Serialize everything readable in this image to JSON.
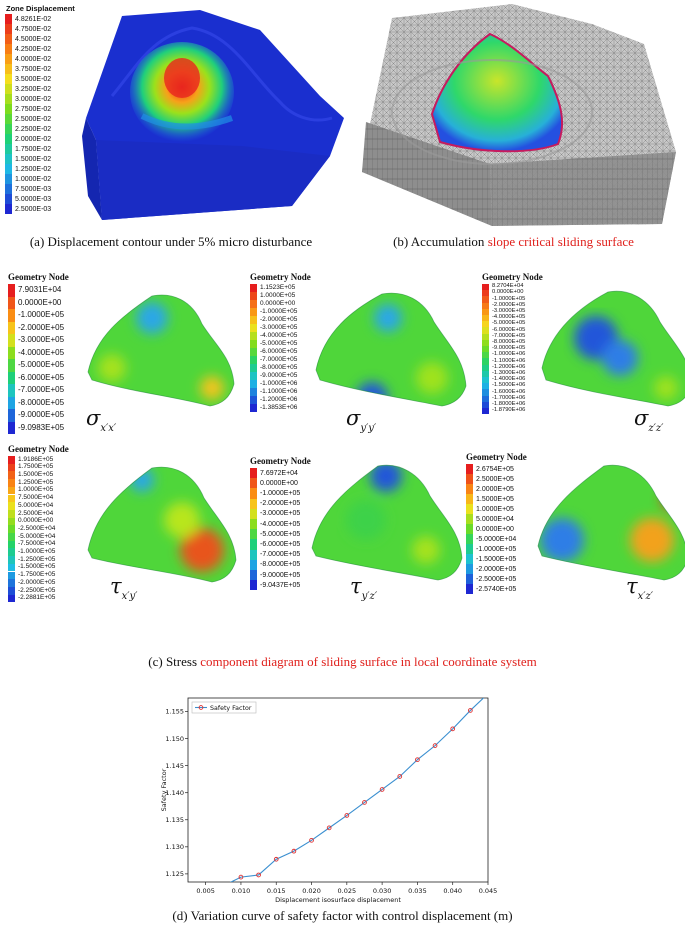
{
  "panel_a": {
    "legend_title": "Zone Displacement",
    "legend_values": [
      "4.8261E-02",
      "4.7500E-02",
      "4.5000E-02",
      "4.2500E-02",
      "4.0000E-02",
      "3.7500E-02",
      "3.5000E-02",
      "3.2500E-02",
      "3.0000E-02",
      "2.7500E-02",
      "2.5000E-02",
      "2.2500E-02",
      "2.0000E-02",
      "1.7500E-02",
      "1.5000E-02",
      "1.2500E-02",
      "1.0000E-02",
      "7.5000E-03",
      "5.0000E-03",
      "2.5000E-03"
    ],
    "caption": "(a) Displacement contour under 5% micro disturbance"
  },
  "panel_b": {
    "caption_prefix": "(b) Accumulation ",
    "caption_highlight": "slope critical sliding surface"
  },
  "panel_c": {
    "legend_title": "Geometry Node",
    "plots": [
      {
        "values": [
          "7.9031E+04",
          "0.0000E+00",
          "-1.0000E+05",
          "-2.0000E+05",
          "-3.0000E+05",
          "-4.0000E+05",
          "-5.0000E+05",
          "-6.0000E+05",
          "-7.0000E+05",
          "-8.0000E+05",
          "-9.0000E+05",
          "-9.0983E+05"
        ],
        "symbol": "σ",
        "sub": "x′x′"
      },
      {
        "values": [
          "1.1523E+05",
          "1.0000E+05",
          "0.0000E+00",
          "-1.0000E+05",
          "-2.0000E+05",
          "-3.0000E+05",
          "-4.0000E+05",
          "-5.0000E+05",
          "-6.0000E+05",
          "-7.0000E+05",
          "-8.0000E+05",
          "-9.0000E+05",
          "-1.0000E+06",
          "-1.1000E+06",
          "-1.2000E+06",
          "-1.3853E+06"
        ],
        "symbol": "σ",
        "sub": "y′y′"
      },
      {
        "values": [
          "8.2704E+04",
          "0.0000E+00",
          "-1.0000E+05",
          "-2.0000E+05",
          "-3.0000E+05",
          "-4.0000E+05",
          "-5.0000E+05",
          "-6.0000E+05",
          "-7.0000E+05",
          "-8.0000E+05",
          "-9.0000E+05",
          "-1.0000E+06",
          "-1.1000E+06",
          "-1.2000E+06",
          "-1.3000E+06",
          "-1.4000E+06",
          "-1.5000E+06",
          "-1.6000E+06",
          "-1.7000E+06",
          "-1.8000E+06",
          "-1.8790E+06"
        ],
        "symbol": "σ",
        "sub": "z′z′"
      },
      {
        "values": [
          "1.9186E+05",
          "1.7500E+05",
          "1.5000E+05",
          "1.2500E+05",
          "1.0000E+05",
          "7.5000E+04",
          "5.0000E+04",
          "2.5000E+04",
          "0.0000E+00",
          "-2.5000E+04",
          "-5.0000E+04",
          "-7.5000E+04",
          "-1.0000E+05",
          "-1.2500E+05",
          "-1.5000E+05",
          "-1.7500E+05",
          "-2.0000E+05",
          "-2.2500E+05",
          "-2.2881E+05"
        ],
        "symbol": "τ",
        "sub": "x′y′"
      },
      {
        "values": [
          "7.6972E+04",
          "0.0000E+00",
          "-1.0000E+05",
          "-2.0000E+05",
          "-3.0000E+05",
          "-4.0000E+05",
          "-5.0000E+05",
          "-6.0000E+05",
          "-7.0000E+05",
          "-8.0000E+05",
          "-9.0000E+05",
          "-9.0437E+05"
        ],
        "symbol": "τ",
        "sub": "y′z′"
      },
      {
        "values": [
          "2.6754E+05",
          "2.5000E+05",
          "2.0000E+05",
          "1.5000E+05",
          "1.0000E+05",
          "5.0000E+04",
          "0.0000E+00",
          "-5.0000E+04",
          "-1.0000E+05",
          "-1.5000E+05",
          "-2.0000E+05",
          "-2.5000E+05",
          "-2.5740E+05"
        ],
        "symbol": "τ",
        "sub": "x′z′"
      }
    ],
    "caption_prefix": "(c) Stress ",
    "caption_highlight": "component diagram of sliding surface in local coordinate system"
  },
  "panel_d": {
    "caption": "(d) Variation curve of safety factor with control displacement (m)"
  },
  "chart_data": {
    "type": "line",
    "title": "",
    "xlabel": "Displacement isosurface displacement",
    "ylabel": "Safety Factor",
    "xlim": [
      0.0025,
      0.045
    ],
    "ylim": [
      1.1235,
      1.1575
    ],
    "x_ticks": [
      "0.005",
      "0.010",
      "0.015",
      "0.020",
      "0.025",
      "0.030",
      "0.035",
      "0.040",
      "0.045"
    ],
    "y_ticks": [
      "1.125",
      "1.130",
      "1.135",
      "1.140",
      "1.145",
      "1.150",
      "1.155"
    ],
    "legend_position": "top-left",
    "grid": false,
    "series": [
      {
        "name": "Safety Factor",
        "x": [
          0.0025,
          0.005,
          0.0075,
          0.01,
          0.0125,
          0.015,
          0.0175,
          0.02,
          0.0225,
          0.025,
          0.0275,
          0.03,
          0.0325,
          0.035,
          0.0375,
          0.04,
          0.0425,
          0.045
        ],
        "y": [
          1.1228,
          1.1221,
          1.1228,
          1.1244,
          1.1248,
          1.1277,
          1.1292,
          1.1312,
          1.1335,
          1.1358,
          1.1382,
          1.1406,
          1.143,
          1.1461,
          1.1487,
          1.1518,
          1.1552,
          1.1583
        ]
      }
    ]
  },
  "colors": {
    "highlight": "#e0211d",
    "line": "#3a8fd0",
    "marker": "#e03030"
  }
}
